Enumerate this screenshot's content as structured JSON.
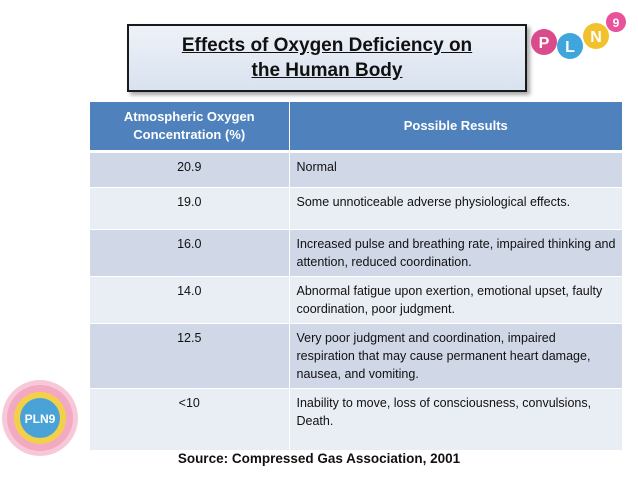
{
  "title": {
    "line1": "Effects of Oxygen Deficiency on",
    "line2": "the Human Body"
  },
  "logo": {
    "letters": [
      "P",
      "L",
      "N",
      "9"
    ],
    "badge_text": "PLN9"
  },
  "table": {
    "headers": [
      "Atmospheric Oxygen Concentration (%)",
      "Possible Results"
    ],
    "rows": [
      {
        "concentration": "20.9",
        "result": "Normal"
      },
      {
        "concentration": "19.0",
        "result": "Some unnoticeable adverse physiological effects."
      },
      {
        "concentration": "16.0",
        "result": "Increased pulse and breathing rate, impaired thinking and attention, reduced coordination."
      },
      {
        "concentration": "14.0",
        "result": "Abnormal fatigue upon exertion, emotional upset, faulty coordination, poor judgment."
      },
      {
        "concentration": "12.5",
        "result": "Very poor judgment and coordination, impaired respiration that may cause permanent heart damage, nausea, and vomiting."
      },
      {
        "concentration": "<10",
        "result": "Inability to move, loss of consciousness, convulsions, Death."
      }
    ]
  },
  "source": "Source: Compressed Gas Association, 2001",
  "colors": {
    "header_blue": "#4f81bd",
    "row_band_dark": "#d0d8e8",
    "row_band_light": "#e9edf4"
  }
}
